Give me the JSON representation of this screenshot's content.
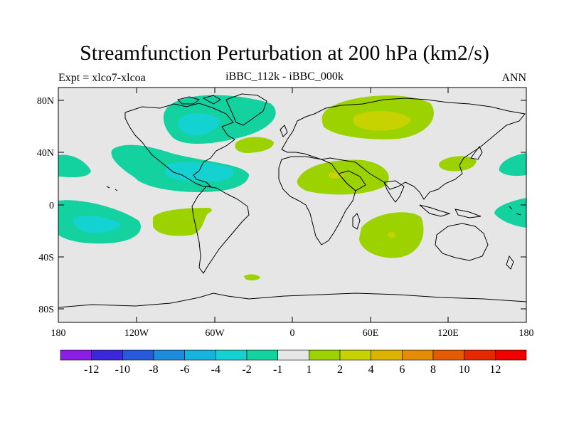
{
  "title": "Streamfunction Perturbation at 200 hPa (km2/s)",
  "subtitle_left": "Expt = xlco7-xlcoa",
  "subtitle_center": "iBBC_112k - iBBC_000k",
  "subtitle_right": "ANN",
  "lat_labels": [
    "80N",
    "40N",
    "0",
    "40S",
    "80S"
  ],
  "lon_labels": [
    "180",
    "120W",
    "60W",
    "0",
    "60E",
    "120E",
    "180"
  ],
  "colorbar": {
    "labels": [
      "-12",
      "-10",
      "-8",
      "-6",
      "-4",
      "-2",
      "-1",
      "1",
      "2",
      "4",
      "6",
      "8",
      "10",
      "12"
    ],
    "colors": [
      "#8a1ee6",
      "#3c28dc",
      "#2858dc",
      "#1e8cdc",
      "#14b4dc",
      "#14d2d2",
      "#14d2a0",
      "#e6e6e6",
      "#9bd200",
      "#c8d200",
      "#dcb400",
      "#e68c00",
      "#e65a00",
      "#e62800",
      "#f00000"
    ]
  },
  "chart_data": {
    "type": "map",
    "projection": "cylindrical equidistant",
    "variable": "Streamfunction perturbation at 200 hPa",
    "units": "km2/s",
    "lon_range": [
      -180,
      180
    ],
    "lat_range": [
      -90,
      90
    ],
    "contour_levels": [
      -12,
      -10,
      -8,
      -6,
      -4,
      -2,
      -1,
      1,
      2,
      4,
      6,
      8,
      10,
      12
    ],
    "regions": [
      {
        "name": "North America / Greenland",
        "sign": "negative",
        "approx_value": -2
      },
      {
        "name": "Eastern Pacific / Caribbean",
        "sign": "negative",
        "approx_value": -4
      },
      {
        "name": "Southeast Pacific",
        "sign": "negative",
        "approx_value": -4
      },
      {
        "name": "Western Pacific (north)",
        "sign": "negative",
        "approx_value": -2
      },
      {
        "name": "Northern Eurasia",
        "sign": "positive",
        "approx_value": 2
      },
      {
        "name": "Middle East / North Africa",
        "sign": "positive",
        "approx_value": 2
      },
      {
        "name": "Southern Indian Ocean",
        "sign": "positive",
        "approx_value": 2
      },
      {
        "name": "South Atlantic / South America",
        "sign": "positive",
        "approx_value": 1
      },
      {
        "name": "North Atlantic",
        "sign": "positive",
        "approx_value": 1
      },
      {
        "name": "East Asia",
        "sign": "positive",
        "approx_value": 1
      }
    ]
  }
}
